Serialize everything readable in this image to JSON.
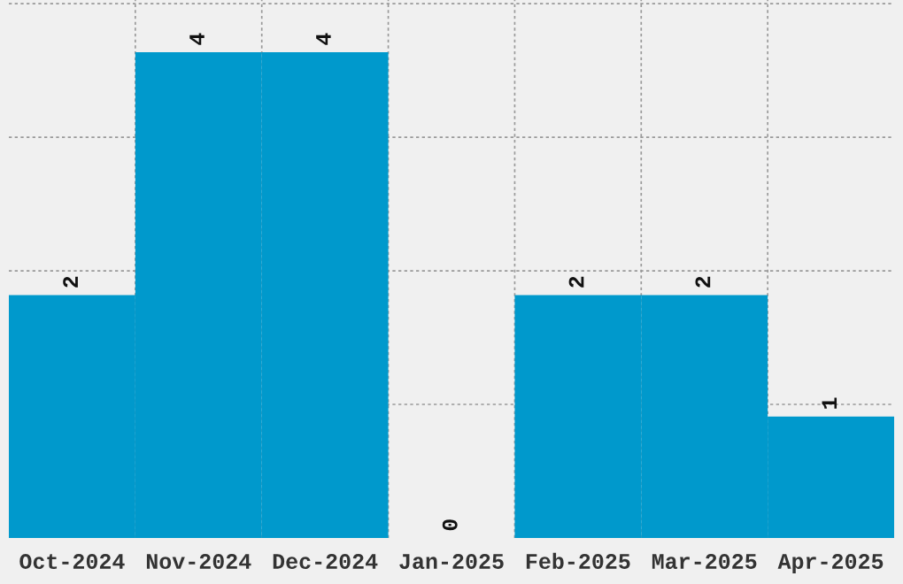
{
  "chart_data": {
    "type": "bar",
    "categories": [
      "Oct-2024",
      "Nov-2024",
      "Dec-2024",
      "Jan-2025",
      "Feb-2025",
      "Mar-2025",
      "Apr-2025"
    ],
    "values": [
      2,
      4,
      4,
      0,
      2,
      2,
      1
    ],
    "color": "#0099cc",
    "data_labels": true,
    "ylim": [
      0,
      4.43
    ],
    "yticks": [
      {
        "value": 1.1,
        "label": null
      },
      {
        "value": 2.2,
        "label": null
      },
      {
        "value": 3.3,
        "label": null
      },
      {
        "value": 4.4,
        "label": null
      }
    ],
    "tick_labels": "x",
    "grid": true
  }
}
